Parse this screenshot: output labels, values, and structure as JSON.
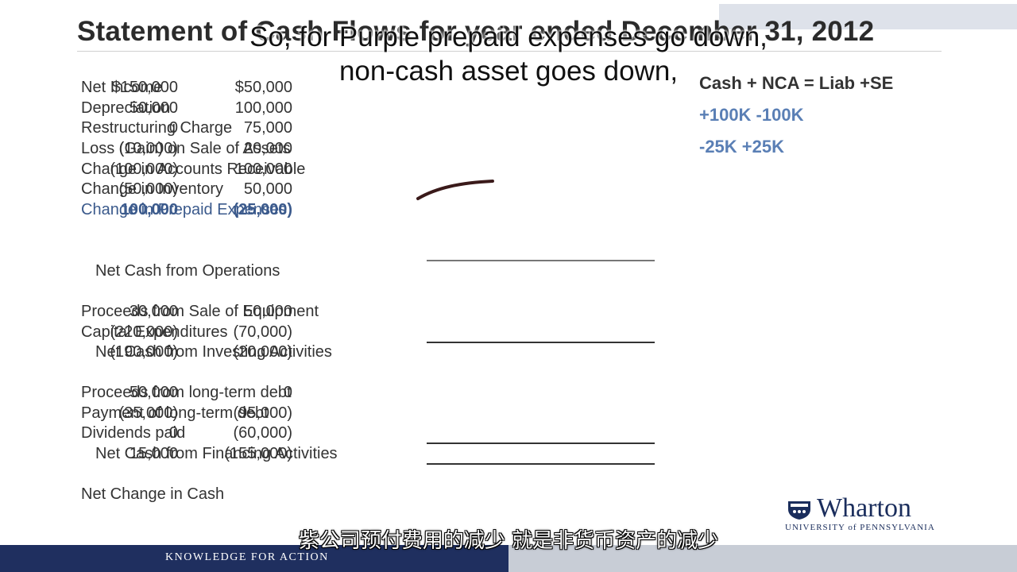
{
  "slide": {
    "title": "Statement of Cash Flows for year ended December 31, 2012",
    "rows": [
      {
        "label": "Net Income",
        "v1": "$150,000",
        "v2": "$50,000"
      },
      {
        "label": "Depreciation",
        "v1": "50,000",
        "v2": "100,000"
      },
      {
        "label": "Restructuring Charge",
        "v1": "0",
        "v2": "75,000"
      },
      {
        "label": "Loss (Gain) on Sale of Assets",
        "v1": "(10,000)",
        "v2": "20,000"
      },
      {
        "label": "Change in Accounts Receivable",
        "v1": "(100,000)",
        "v2": "100,000"
      },
      {
        "label": "Change in Inventory",
        "v1": "(50,000)",
        "v2": "50,000"
      },
      {
        "label": "Change in Prepaid Expenses",
        "v1": "100,000",
        "v2": "(25,000)"
      },
      {
        "label": "Net Cash from Operations",
        "v1": "",
        "v2": ""
      },
      {
        "label": "Proceeds from Sale of Equipment",
        "v1": "30,000",
        "v2": "50,000"
      },
      {
        "label": "Capital Expenditures",
        "v1": "(220,000)",
        "v2": "(70,000)"
      },
      {
        "label": "Net Cash from Investing Activities",
        "v1": "(190,000)",
        "v2": "(20,000)"
      },
      {
        "label": "Proceeds from long-term debt",
        "v1": "50,000",
        "v2": "0"
      },
      {
        "label": "Payment of long-term debt",
        "v1": "(35,000)",
        "v2": "(95,000)"
      },
      {
        "label": "Dividends paid",
        "v1": "0",
        "v2": "(60,000)"
      },
      {
        "label": "Net Cash from Financing Activities",
        "v1": "15,000",
        "v2": "(155,000)"
      },
      {
        "label": "Net Change in Cash",
        "v1": "",
        "v2": ""
      }
    ],
    "equation": {
      "header": "Cash + NCA = Liab +SE",
      "line1": "+100K  -100K",
      "line2": "-25K     +25K"
    },
    "logo": {
      "name": "Wharton",
      "sub": "UNIVERSITY of PENNSYLVANIA"
    },
    "footer": "KNOWLEDGE FOR ACTION"
  },
  "subtitles": {
    "en_line1": "So, for Purple prepaid expenses go down,",
    "en_line2": "non-cash asset goes down,",
    "zh": "紫公司预付费用的减少 就是非货币资产的减少"
  },
  "colors": {
    "accent_blue": "#3b5a8c",
    "navy": "#1f2f5f"
  }
}
